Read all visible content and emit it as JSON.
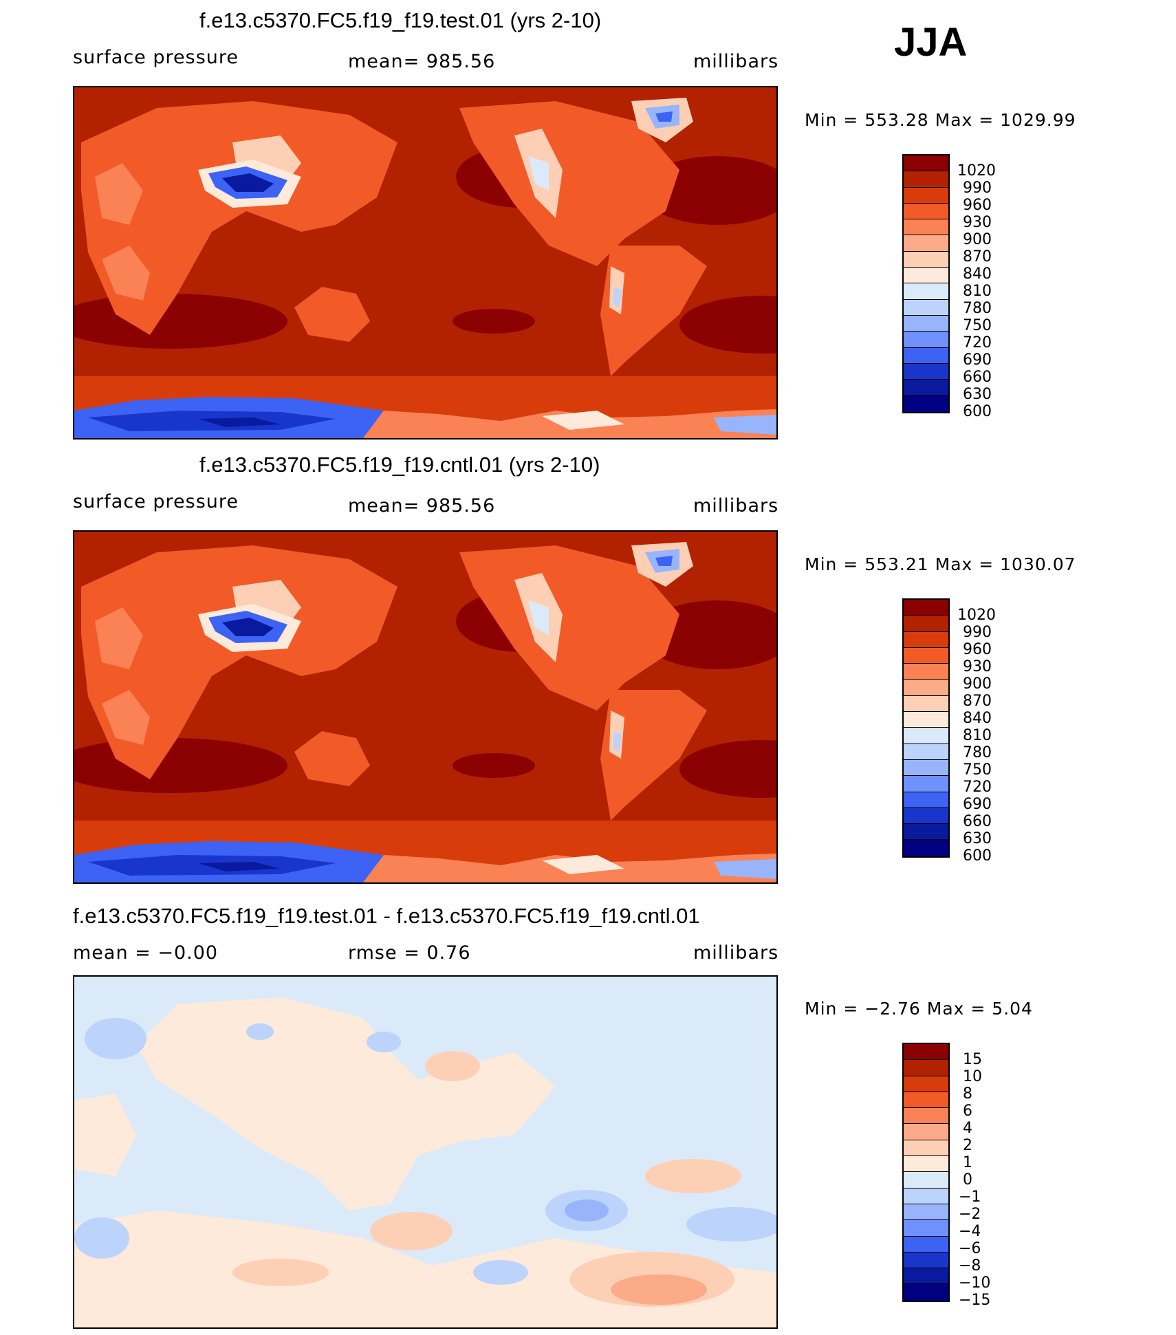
{
  "season": "JJA",
  "panels": [
    {
      "title": "f.e13.c5370.FC5.f19_f19.test.01 (yrs 2-10)",
      "left_label": "surface pressure",
      "center_label": "mean=  985.56",
      "units": "millibars",
      "minmax": "Min  =  553.28  Max  =  1029.99",
      "colorbar_labels": [
        "1020",
        "990",
        "960",
        "930",
        "900",
        "870",
        "840",
        "810",
        "780",
        "750",
        "720",
        "690",
        "660",
        "630",
        "600"
      ],
      "colors": [
        "#8b0000",
        "#b22200",
        "#d83c0a",
        "#f25a28",
        "#fa8255",
        "#fcab88",
        "#fdd0b6",
        "#fdeadb",
        "#dbeaf9",
        "#bcd3fb",
        "#98b5fc",
        "#6f91fd",
        "#3d63f5",
        "#1936cc",
        "#0a1a9e",
        "#000080"
      ]
    },
    {
      "title": "f.e13.c5370.FC5.f19_f19.cntl.01 (yrs 2-10)",
      "left_label": "surface pressure",
      "center_label": "mean=  985.56",
      "units": "millibars",
      "minmax": "Min  =  553.21  Max  =  1030.07",
      "colorbar_labels": [
        "1020",
        "990",
        "960",
        "930",
        "900",
        "870",
        "840",
        "810",
        "780",
        "750",
        "720",
        "690",
        "660",
        "630",
        "600"
      ],
      "colors": [
        "#8b0000",
        "#b22200",
        "#d83c0a",
        "#f25a28",
        "#fa8255",
        "#fcab88",
        "#fdd0b6",
        "#fdeadb",
        "#dbeaf9",
        "#bcd3fb",
        "#98b5fc",
        "#6f91fd",
        "#3d63f5",
        "#1936cc",
        "#0a1a9e",
        "#000080"
      ]
    },
    {
      "title": "f.e13.c5370.FC5.f19_f19.test.01 - f.e13.c5370.FC5.f19_f19.cntl.01",
      "left_label": "mean  =    −0.00",
      "center_label": "rmse  =      0.76",
      "units": "millibars",
      "minmax": "Min  =    −2.76  Max  =       5.04",
      "colorbar_labels": [
        "15",
        "10",
        "8",
        "6",
        "4",
        "2",
        "1",
        "0",
        "−1",
        "−2",
        "−4",
        "−6",
        "−8",
        "−10",
        "−15"
      ],
      "colors": [
        "#8b0000",
        "#b22200",
        "#d83c0a",
        "#f25a28",
        "#fa8255",
        "#fcab88",
        "#fdd0b6",
        "#fdeadb",
        "#dbeaf9",
        "#bcd3fb",
        "#98b5fc",
        "#6f91fd",
        "#3d63f5",
        "#1936cc",
        "#0a1a9e",
        "#000080"
      ]
    }
  ],
  "chart_data": [
    {
      "type": "heatmap",
      "title": "f.e13.c5370.FC5.f19_f19.test.01 (yrs 2-10)",
      "variable": "surface pressure",
      "units": "millibars",
      "mean": 985.56,
      "min": 553.28,
      "max": 1029.99,
      "contour_levels": [
        600,
        630,
        660,
        690,
        720,
        750,
        780,
        810,
        840,
        870,
        900,
        930,
        960,
        990,
        1020
      ],
      "projection": "global cylindrical equidistant, Pacific-centered"
    },
    {
      "type": "heatmap",
      "title": "f.e13.c5370.FC5.f19_f19.cntl.01 (yrs 2-10)",
      "variable": "surface pressure",
      "units": "millibars",
      "mean": 985.56,
      "min": 553.21,
      "max": 1030.07,
      "contour_levels": [
        600,
        630,
        660,
        690,
        720,
        750,
        780,
        810,
        840,
        870,
        900,
        930,
        960,
        990,
        1020
      ],
      "projection": "global cylindrical equidistant, Pacific-centered"
    },
    {
      "type": "heatmap",
      "title": "f.e13.c5370.FC5.f19_f19.test.01 - f.e13.c5370.FC5.f19_f19.cntl.01",
      "variable": "surface pressure difference",
      "units": "millibars",
      "mean": -0.0,
      "rmse": 0.76,
      "min": -2.76,
      "max": 5.04,
      "contour_levels": [
        -15,
        -10,
        -8,
        -6,
        -4,
        -2,
        -1,
        0,
        1,
        2,
        4,
        6,
        8,
        10,
        15
      ],
      "projection": "global cylindrical equidistant, Pacific-centered"
    }
  ]
}
